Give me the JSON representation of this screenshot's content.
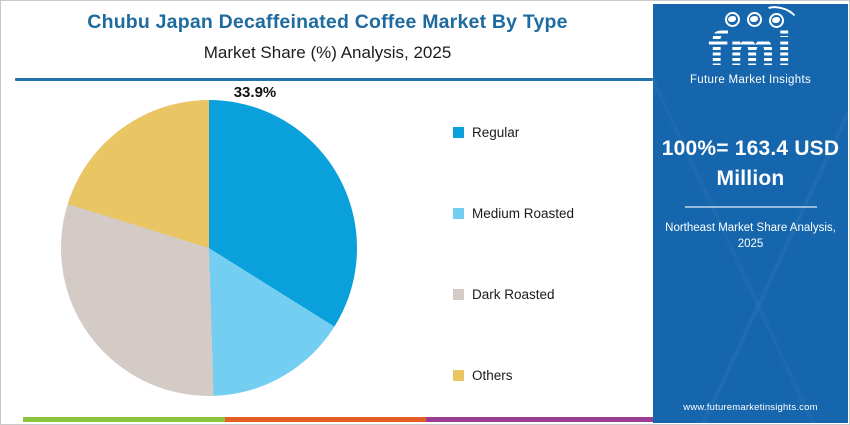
{
  "page": {
    "title": "Chubu Japan Decaffeinated Coffee Market By Type",
    "subtitle": "Market Share (%) Analysis, 2025"
  },
  "chart_data": {
    "type": "pie",
    "title": "Chubu Japan Decaffeinated Coffee Market By Type",
    "subtitle": "Market Share (%) Analysis, 2025",
    "categories": [
      "Regular",
      "Medium Roasted",
      "Dark Roasted",
      "Others"
    ],
    "values": [
      33.9,
      15.6,
      30.3,
      20.2
    ],
    "colors": [
      "#0AA0DB",
      "#73CEF1",
      "#D4CAC6",
      "#EAC563"
    ],
    "unit": "%",
    "start_angle_deg": 0,
    "direction": "clockwise",
    "legend_position": "right",
    "data_label": {
      "category": "Regular",
      "text": "33.9%"
    }
  },
  "sidebar": {
    "logo_text": "fmi",
    "logo_tagline": "Future Market Insights",
    "stat": "100%= 163.4 USD Million",
    "note": "Northeast Market Share Analysis, 2025",
    "website": "www.futuremarketinsights.com",
    "background_color": "#1566AD"
  },
  "footer": {
    "stripe_colors": [
      "#8CC540",
      "#E45E24",
      "#993C94"
    ]
  },
  "theme": {
    "title_color": "#1E6B9F",
    "title_rule_color": "#2273A9"
  }
}
